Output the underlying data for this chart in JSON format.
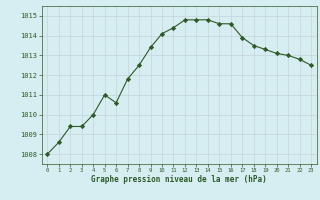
{
  "x": [
    0,
    1,
    2,
    3,
    4,
    5,
    6,
    7,
    8,
    9,
    10,
    11,
    12,
    13,
    14,
    15,
    16,
    17,
    18,
    19,
    20,
    21,
    22,
    23
  ],
  "y": [
    1008.0,
    1008.6,
    1009.4,
    1009.4,
    1010.0,
    1011.0,
    1010.6,
    1011.8,
    1012.5,
    1013.4,
    1014.1,
    1014.4,
    1014.8,
    1014.8,
    1014.8,
    1014.6,
    1014.6,
    1013.9,
    1013.5,
    1013.3,
    1013.1,
    1013.0,
    1012.8,
    1012.5
  ],
  "line_color": "#2d5a27",
  "marker": "D",
  "marker_size": 2.2,
  "bg_color": "#d6eef2",
  "grid_color": "#c8d8dc",
  "xlabel": "Graphe pression niveau de la mer (hPa)",
  "xlabel_color": "#2d5a27",
  "tick_color": "#2d5a27",
  "ylim": [
    1007.5,
    1015.5
  ],
  "xlim": [
    -0.5,
    23.5
  ],
  "yticks": [
    1008,
    1009,
    1010,
    1011,
    1012,
    1013,
    1014,
    1015
  ],
  "xticks": [
    0,
    1,
    2,
    3,
    4,
    5,
    6,
    7,
    8,
    9,
    10,
    11,
    12,
    13,
    14,
    15,
    16,
    17,
    18,
    19,
    20,
    21,
    22,
    23
  ]
}
